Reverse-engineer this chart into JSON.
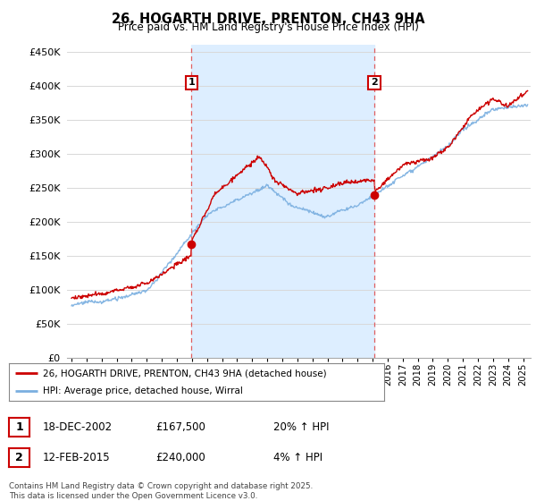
{
  "title": "26, HOGARTH DRIVE, PRENTON, CH43 9HA",
  "subtitle": "Price paid vs. HM Land Registry's House Price Index (HPI)",
  "ylabel_ticks": [
    "£0",
    "£50K",
    "£100K",
    "£150K",
    "£200K",
    "£250K",
    "£300K",
    "£350K",
    "£400K",
    "£450K"
  ],
  "ytick_values": [
    0,
    50000,
    100000,
    150000,
    200000,
    250000,
    300000,
    350000,
    400000,
    450000
  ],
  "ylim": [
    0,
    460000
  ],
  "xlim_start": 1994.7,
  "xlim_end": 2025.5,
  "sale1_x": 2002.96,
  "sale1_y": 167500,
  "sale2_x": 2015.12,
  "sale2_y": 240000,
  "vline1_x": 2002.96,
  "vline2_x": 2015.12,
  "line_color_red": "#cc0000",
  "line_color_blue": "#7aafe0",
  "shade_color": "#ddeeff",
  "vline_color": "#e06060",
  "background_color": "#ffffff",
  "grid_color": "#d8d8d8",
  "legend_label_red": "26, HOGARTH DRIVE, PRENTON, CH43 9HA (detached house)",
  "legend_label_blue": "HPI: Average price, detached house, Wirral",
  "footnote": "Contains HM Land Registry data © Crown copyright and database right 2025.\nThis data is licensed under the Open Government Licence v3.0.",
  "table_rows": [
    {
      "num": "1",
      "date": "18-DEC-2002",
      "price": "£167,500",
      "hpi": "20% ↑ HPI"
    },
    {
      "num": "2",
      "date": "12-FEB-2015",
      "price": "£240,000",
      "hpi": "4% ↑ HPI"
    }
  ],
  "xtick_years": [
    1995,
    1996,
    1997,
    1998,
    1999,
    2000,
    2001,
    2002,
    2003,
    2004,
    2005,
    2006,
    2007,
    2008,
    2009,
    2010,
    2011,
    2012,
    2013,
    2014,
    2015,
    2016,
    2017,
    2018,
    2019,
    2020,
    2021,
    2022,
    2023,
    2024,
    2025
  ]
}
